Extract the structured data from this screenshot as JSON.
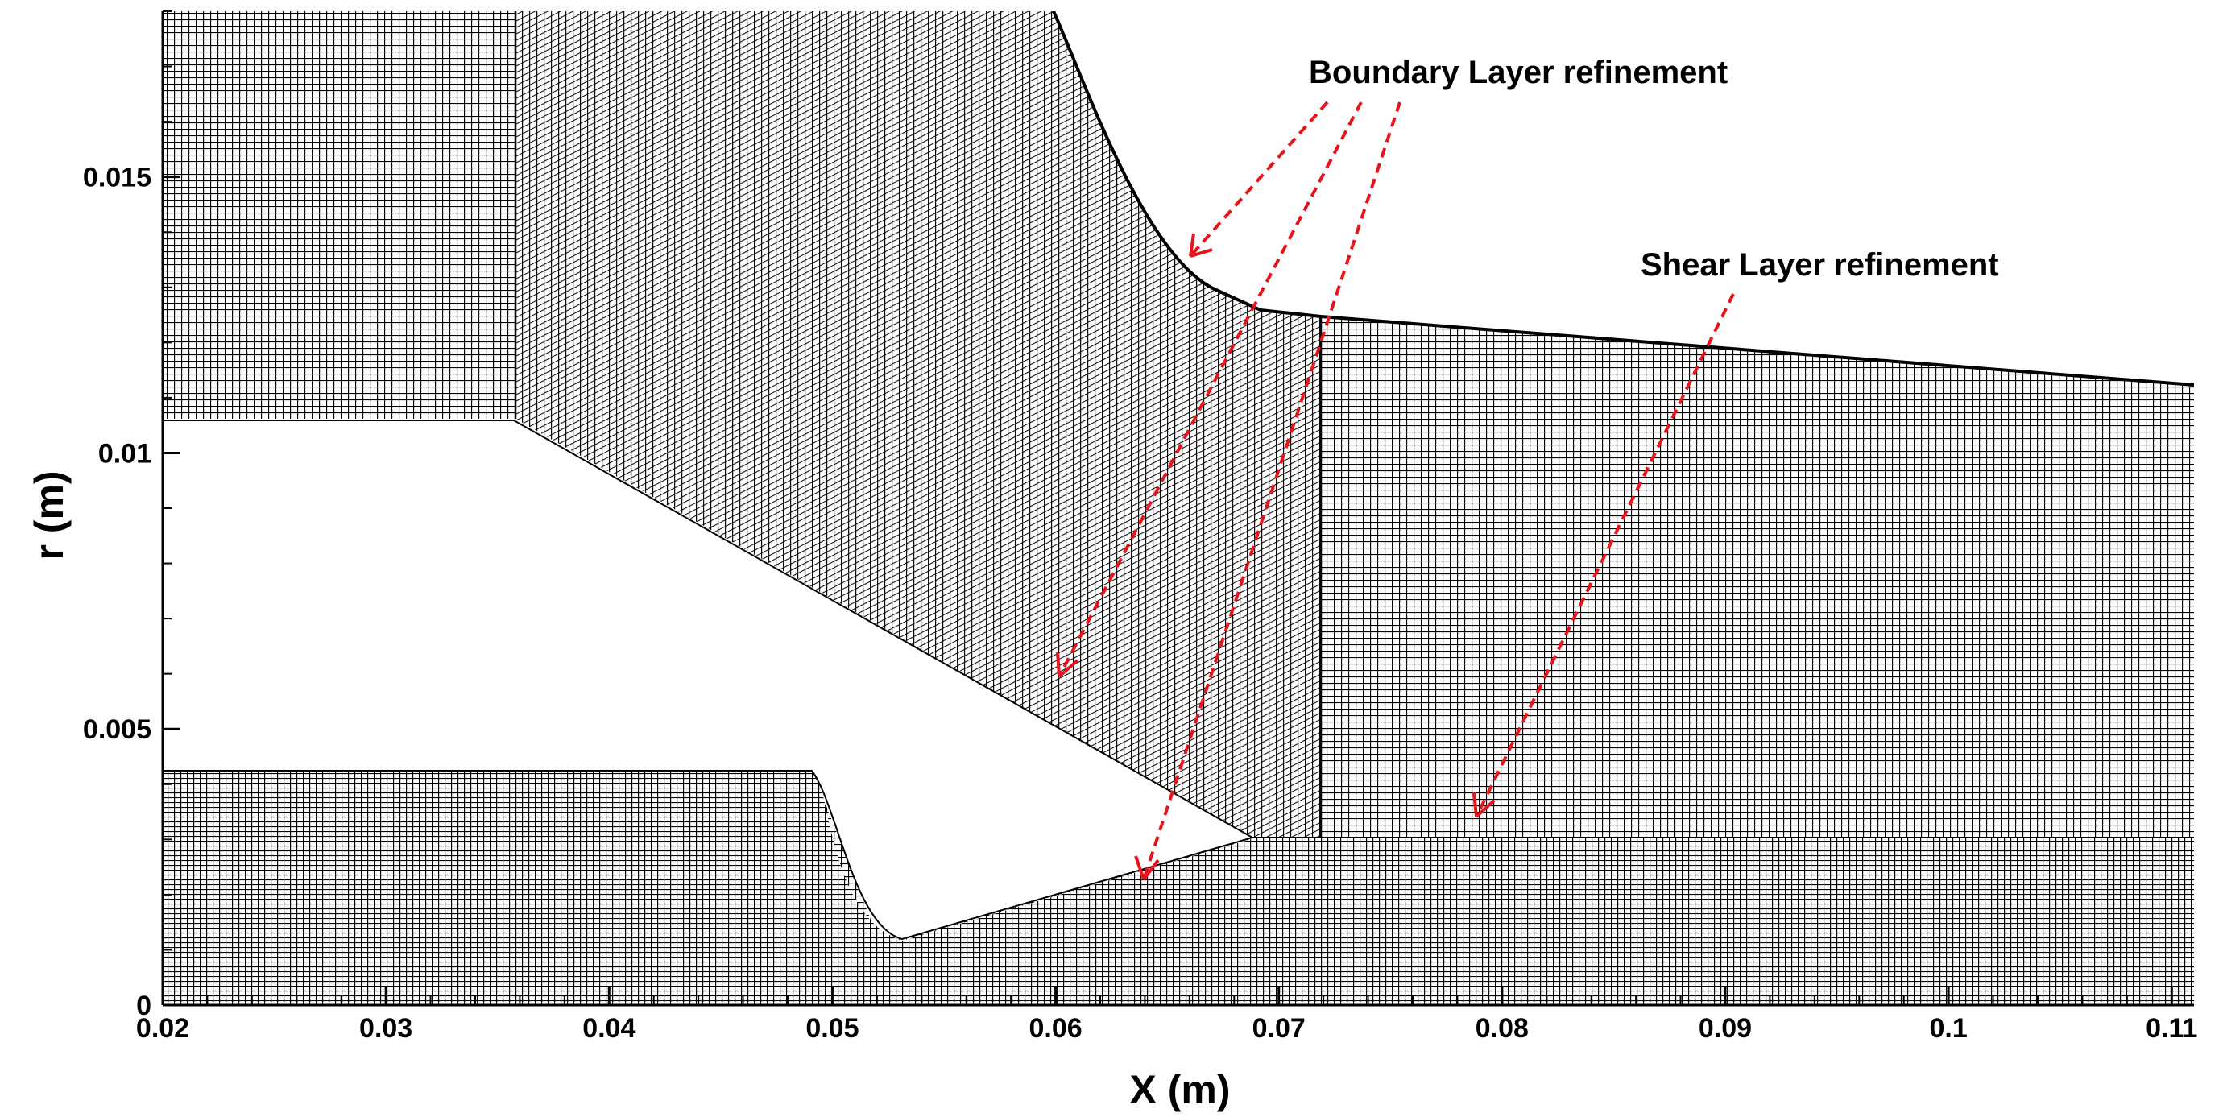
{
  "figure": {
    "x_axis_title": "X (m)",
    "y_axis_title": "r (m)",
    "x_ticks": [
      "0.02",
      "0.03",
      "0.04",
      "0.05",
      "0.06",
      "0.07",
      "0.08",
      "0.09",
      "0.1",
      "0.11"
    ],
    "y_ticks": [
      "0",
      "0.005",
      "0.01",
      "0.015"
    ],
    "x_range": [
      0.02,
      0.111
    ],
    "y_range": [
      0,
      0.018
    ],
    "annotations": {
      "boundary_layer": "Boundary Layer refinement",
      "shear_layer": "Shear Layer refinement"
    },
    "colors": {
      "mesh": "#000000",
      "arrow": "#e8141b",
      "background": "#ffffff"
    }
  }
}
